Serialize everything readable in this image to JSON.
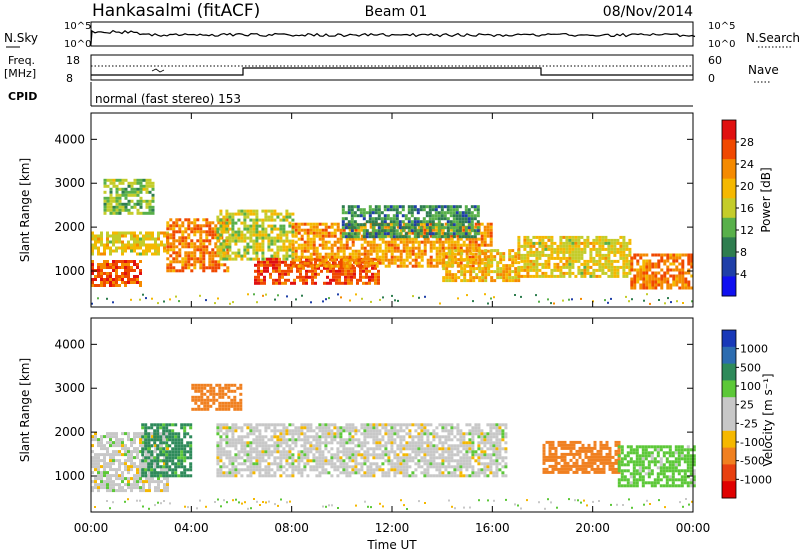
{
  "header": {
    "title": "Hankasalmi (fitACF)",
    "beam": "Beam 01",
    "date": "08/Nov/2014"
  },
  "nsky_panel": {
    "left_label": "N.Sky",
    "right_label": "N.Search",
    "left_ticks": [
      "10^5",
      "10^0"
    ],
    "right_ticks": [
      "10^5",
      "10^0"
    ]
  },
  "freq_panel": {
    "left_label_line1": "Freq.",
    "left_label_line2": "[MHz]",
    "right_label": "Nave",
    "left_ticks": [
      "18",
      "8"
    ],
    "right_ticks": [
      "60",
      "0"
    ]
  },
  "cpid_panel": {
    "label": "CPID",
    "value": "normal (fast stereo) 153"
  },
  "colors": {
    "power_scale": [
      "#1010f0",
      "#1f3fa8",
      "#2e7d4f",
      "#58b04a",
      "#c4cc2a",
      "#f5b800",
      "#f58a00",
      "#f04800",
      "#e01010"
    ],
    "velocity_scale": [
      "#1838b8",
      "#2c6cb0",
      "#2e8a5a",
      "#5cc838",
      "#c8c8c8",
      "#c8c8c8",
      "#f5b800",
      "#f08020",
      "#e84010",
      "#e00000"
    ]
  },
  "chart_data": [
    {
      "type": "heatmap",
      "name": "power",
      "ylabel": "Slant Range [km]",
      "xlabel": "",
      "ylim": [
        180,
        4600
      ],
      "xlim": [
        0,
        24
      ],
      "x_ticks": [
        "00:00",
        "04:00",
        "08:00",
        "12:00",
        "16:00",
        "20:00",
        "00:00"
      ],
      "y_ticks": [
        "1000",
        "2000",
        "3000",
        "4000"
      ],
      "colorbar_label": "Power [dB]",
      "colorbar_ticks": [
        "4",
        "8",
        "12",
        "16",
        "20",
        "24",
        "28"
      ],
      "regions": [
        {
          "t0": 0.0,
          "t1": 2.0,
          "r0": 700,
          "r1": 1250,
          "power": 26
        },
        {
          "t0": 0.0,
          "t1": 3.0,
          "r0": 1400,
          "r1": 1900,
          "power": 18
        },
        {
          "t0": 0.5,
          "t1": 2.5,
          "r0": 2300,
          "r1": 3100,
          "power": 14
        },
        {
          "t0": 3.0,
          "t1": 5.5,
          "r0": 1000,
          "r1": 2200,
          "power": 24
        },
        {
          "t0": 5.0,
          "t1": 8.0,
          "r0": 1300,
          "r1": 2400,
          "power": 16
        },
        {
          "t0": 6.5,
          "t1": 11.5,
          "r0": 700,
          "r1": 1300,
          "power": 26
        },
        {
          "t0": 8.0,
          "t1": 16.0,
          "r0": 1100,
          "r1": 2100,
          "power": 22
        },
        {
          "t0": 10.0,
          "t1": 15.5,
          "r0": 1800,
          "r1": 2500,
          "power": 10
        },
        {
          "t0": 14.0,
          "t1": 17.0,
          "r0": 800,
          "r1": 1500,
          "power": 20
        },
        {
          "t0": 17.0,
          "t1": 21.5,
          "r0": 900,
          "r1": 1800,
          "power": 18
        },
        {
          "t0": 21.5,
          "t1": 24.0,
          "r0": 600,
          "r1": 1400,
          "power": 24
        }
      ]
    },
    {
      "type": "heatmap",
      "name": "velocity",
      "ylabel": "Slant Range [km]",
      "xlabel": "Time UT",
      "ylim": [
        180,
        4600
      ],
      "xlim": [
        0,
        24
      ],
      "x_ticks": [
        "00:00",
        "04:00",
        "08:00",
        "12:00",
        "16:00",
        "20:00",
        "00:00"
      ],
      "y_ticks": [
        "1000",
        "2000",
        "3000",
        "4000"
      ],
      "colorbar_label": "Velocity [m s⁻¹]",
      "colorbar_ticks": [
        "1000",
        "500",
        "100",
        "25",
        "-25",
        "-100",
        "-500",
        "-1000"
      ],
      "regions": [
        {
          "t0": 0.0,
          "t1": 3.0,
          "r0": 700,
          "r1": 2000,
          "velocity": 0
        },
        {
          "t0": 2.0,
          "t1": 4.0,
          "r0": 1000,
          "r1": 2200,
          "velocity": 120
        },
        {
          "t0": 4.0,
          "t1": 6.0,
          "r0": 2500,
          "r1": 3100,
          "velocity": -150
        },
        {
          "t0": 5.0,
          "t1": 16.5,
          "r0": 1000,
          "r1": 2200,
          "velocity": 0
        },
        {
          "t0": 18.0,
          "t1": 21.0,
          "r0": 1100,
          "r1": 1800,
          "velocity": -200
        },
        {
          "t0": 21.0,
          "t1": 24.0,
          "r0": 800,
          "r1": 1700,
          "velocity": 50
        }
      ]
    }
  ]
}
